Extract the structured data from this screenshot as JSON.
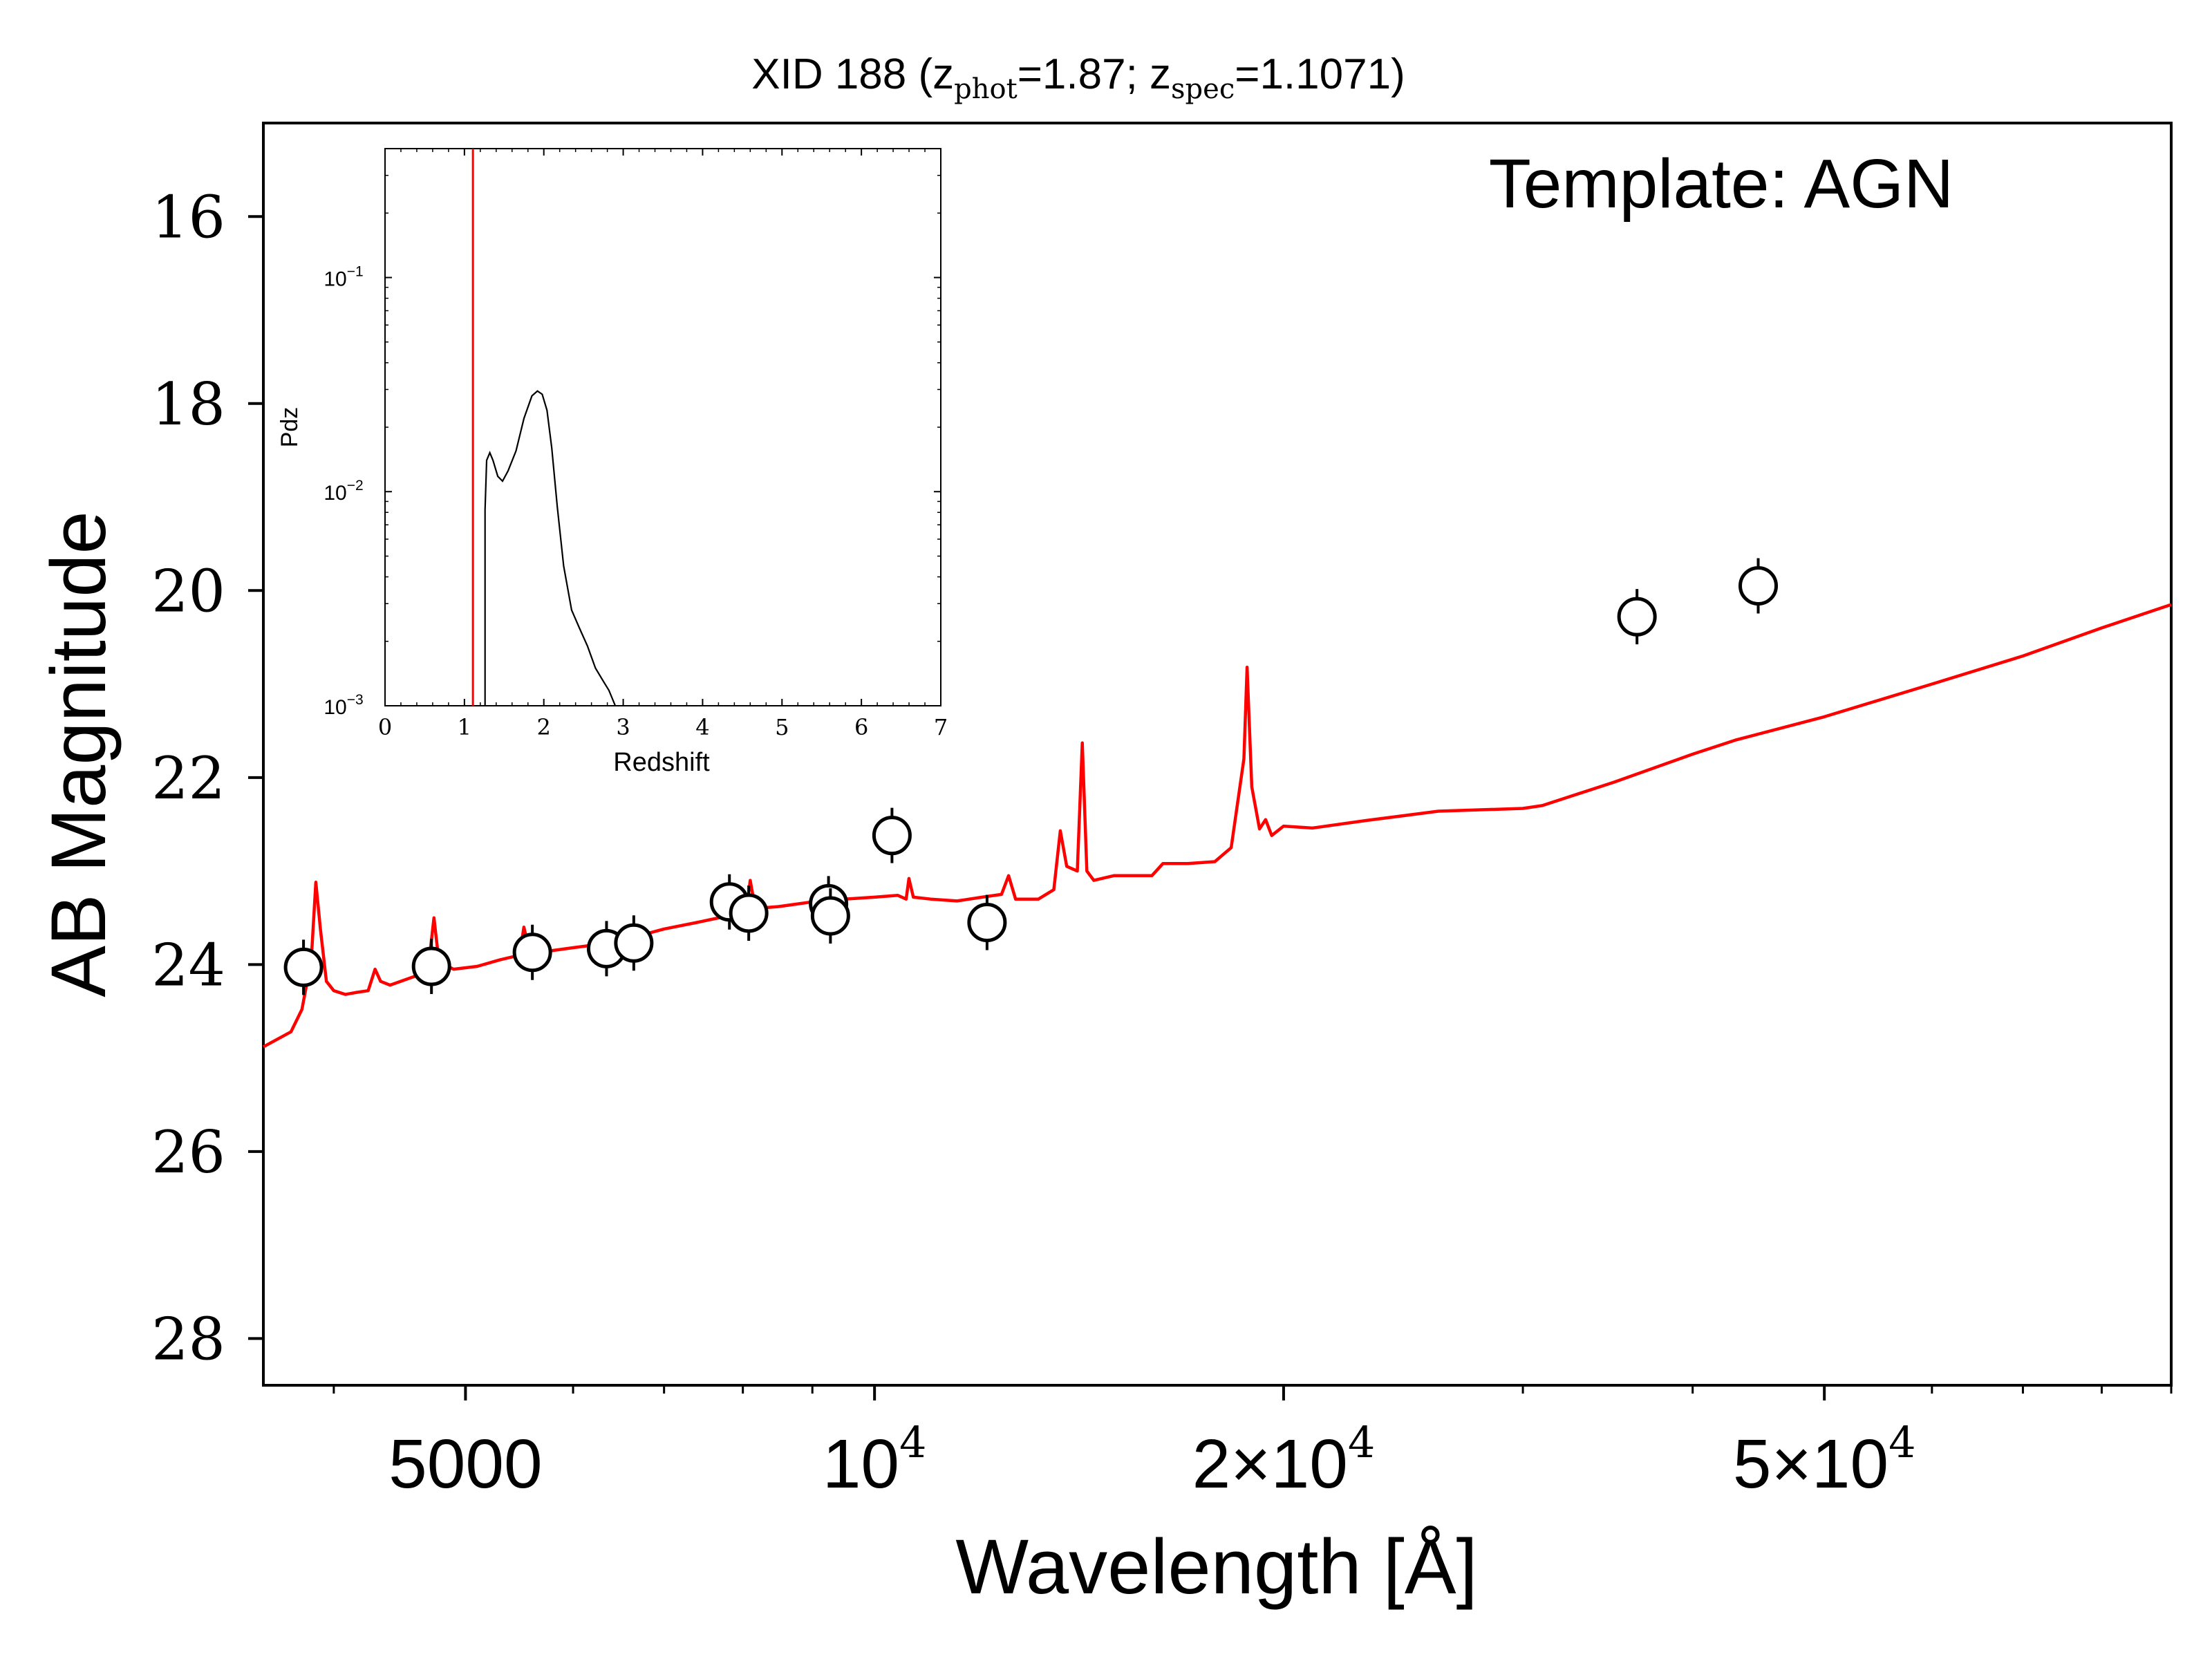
{
  "chart_data": [
    {
      "type": "line",
      "title_main": "XID 188 (z",
      "title_phot_sub": "phot",
      "title_phot_val": "=1.87; z",
      "title_spec_sub": "spec",
      "title_spec_val": "=1.1071)",
      "annotation": "Template: AGN",
      "xlabel": "Wavelength [Å]",
      "ylabel": "AB Magnitude",
      "xscale": "log",
      "xlim": [
        3550,
        90000
      ],
      "ylim": [
        28.5,
        15.0
      ],
      "y_inverted": true,
      "grid": false,
      "x_ticks": [
        {
          "value": 5000,
          "label": "5000"
        },
        {
          "value": 10000,
          "base": "10",
          "exp": "4"
        },
        {
          "value": 20000,
          "base": "2×10",
          "exp": "4"
        },
        {
          "value": 50000,
          "base": "5×10",
          "exp": "4"
        }
      ],
      "y_ticks": [
        16,
        18,
        20,
        22,
        24,
        26,
        28
      ],
      "colors": {
        "model": "#ff0000",
        "points": "#000000",
        "axes": "#000000"
      },
      "series": [
        {
          "kind": "model_sed",
          "points": [
            [
              3550,
              24.88
            ],
            [
              3720,
              24.72
            ],
            [
              3790,
              24.48
            ],
            [
              3850,
              23.95
            ],
            [
              3880,
              23.12
            ],
            [
              3910,
              23.62
            ],
            [
              3950,
              24.18
            ],
            [
              4000,
              24.28
            ],
            [
              4080,
              24.32
            ],
            [
              4150,
              24.3
            ],
            [
              4240,
              24.28
            ],
            [
              4290,
              24.05
            ],
            [
              4330,
              24.18
            ],
            [
              4400,
              24.22
            ],
            [
              4600,
              24.12
            ],
            [
              4700,
              23.97
            ],
            [
              4740,
              23.5
            ],
            [
              4780,
              23.97
            ],
            [
              4900,
              24.05
            ],
            [
              5100,
              24.02
            ],
            [
              5300,
              23.95
            ],
            [
              5480,
              23.9
            ],
            [
              5520,
              23.6
            ],
            [
              5580,
              23.9
            ],
            [
              5800,
              23.85
            ],
            [
              6000,
              23.82
            ],
            [
              6300,
              23.78
            ],
            [
              6600,
              23.72
            ],
            [
              7000,
              23.62
            ],
            [
              7400,
              23.55
            ],
            [
              7800,
              23.48
            ],
            [
              8050,
              23.42
            ],
            [
              8100,
              23.1
            ],
            [
              8170,
              23.4
            ],
            [
              8500,
              23.38
            ],
            [
              9000,
              23.33
            ],
            [
              9500,
              23.3
            ],
            [
              10000,
              23.28
            ],
            [
              10400,
              23.26
            ],
            [
              10550,
              23.3
            ],
            [
              10600,
              23.08
            ],
            [
              10680,
              23.28
            ],
            [
              11000,
              23.3
            ],
            [
              11500,
              23.32
            ],
            [
              12000,
              23.28
            ],
            [
              12400,
              23.25
            ],
            [
              12550,
              23.05
            ],
            [
              12700,
              23.3
            ],
            [
              13200,
              23.3
            ],
            [
              13550,
              23.2
            ],
            [
              13700,
              22.57
            ],
            [
              13850,
              22.95
            ],
            [
              14100,
              23.0
            ],
            [
              14220,
              21.63
            ],
            [
              14330,
              23.0
            ],
            [
              14500,
              23.1
            ],
            [
              15000,
              23.05
            ],
            [
              15500,
              23.05
            ],
            [
              16000,
              23.05
            ],
            [
              16300,
              22.92
            ],
            [
              17000,
              22.92
            ],
            [
              17800,
              22.9
            ],
            [
              18300,
              22.75
            ],
            [
              18700,
              21.8
            ],
            [
              18800,
              20.82
            ],
            [
              18950,
              22.1
            ],
            [
              19200,
              22.55
            ],
            [
              19400,
              22.45
            ],
            [
              19600,
              22.62
            ],
            [
              20000,
              22.52
            ],
            [
              21000,
              22.54
            ],
            [
              23000,
              22.46
            ],
            [
              26000,
              22.36
            ],
            [
              30000,
              22.33
            ],
            [
              31000,
              22.3
            ],
            [
              35000,
              22.05
            ],
            [
              40000,
              21.75
            ],
            [
              43000,
              21.6
            ],
            [
              50000,
              21.35
            ],
            [
              60000,
              21.0
            ],
            [
              70000,
              20.7
            ],
            [
              80000,
              20.4
            ],
            [
              90000,
              20.15
            ]
          ]
        },
        {
          "kind": "photometry",
          "points": [
            [
              3800,
              24.03
            ],
            [
              4720,
              24.02
            ],
            [
              5600,
              23.87
            ],
            [
              6350,
              23.83
            ],
            [
              6650,
              23.77
            ],
            [
              7820,
              23.33
            ],
            [
              8080,
              23.45
            ],
            [
              9250,
              23.35
            ],
            [
              9280,
              23.48
            ],
            [
              10300,
              22.62
            ],
            [
              12100,
              23.55
            ],
            [
              36400,
              20.28
            ],
            [
              44700,
              19.95
            ]
          ]
        }
      ]
    },
    {
      "type": "line",
      "role": "inset",
      "xlabel": "Redshift",
      "ylabel": "Pdz",
      "yscale": "log",
      "xlim": [
        0,
        7
      ],
      "ylim": [
        0.001,
        0.4
      ],
      "x_ticks": [
        "0",
        "1",
        "2",
        "3",
        "4",
        "5",
        "6",
        "7"
      ],
      "y_ticks": [
        {
          "value": 0.1,
          "base": "10",
          "exp": "−1"
        },
        {
          "value": 0.01,
          "base": "10",
          "exp": "−2"
        },
        {
          "value": 0.001,
          "base": "10",
          "exp": "−3"
        }
      ],
      "spec_z": 1.1071,
      "colors": {
        "pdz": "#000000",
        "spec_z_line": "#ff0000"
      },
      "pdz_points": [
        [
          1.26,
          0.001
        ],
        [
          1.26,
          0.0082
        ],
        [
          1.28,
          0.014
        ],
        [
          1.32,
          0.0152
        ],
        [
          1.36,
          0.014
        ],
        [
          1.42,
          0.0118
        ],
        [
          1.48,
          0.0112
        ],
        [
          1.55,
          0.0125
        ],
        [
          1.65,
          0.0155
        ],
        [
          1.75,
          0.022
        ],
        [
          1.85,
          0.028
        ],
        [
          1.92,
          0.0295
        ],
        [
          1.98,
          0.0285
        ],
        [
          2.04,
          0.024
        ],
        [
          2.1,
          0.016
        ],
        [
          2.17,
          0.0085
        ],
        [
          2.25,
          0.0045
        ],
        [
          2.35,
          0.0028
        ],
        [
          2.45,
          0.0023
        ],
        [
          2.55,
          0.0019
        ],
        [
          2.65,
          0.0015
        ],
        [
          2.75,
          0.0013
        ],
        [
          2.82,
          0.00118
        ],
        [
          2.9,
          0.001
        ]
      ]
    }
  ]
}
